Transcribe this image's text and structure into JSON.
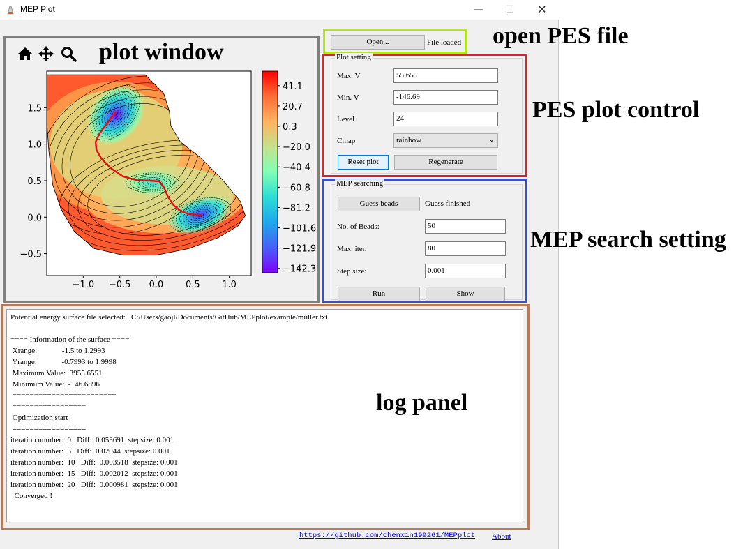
{
  "window": {
    "title": "MEP Plot",
    "minimize": "—",
    "maximize": "☐",
    "close": "✕"
  },
  "annotations": {
    "plot_window": "plot window",
    "open_file": "open PES file",
    "plot_control": "PES plot control",
    "mep_setting": "MEP search setting",
    "log_panel": "log panel"
  },
  "toolbar": {
    "icons": [
      "home-icon",
      "move-icon",
      "zoom-icon"
    ]
  },
  "open_group": {
    "open_label": "Open...",
    "status": "File loaded"
  },
  "plot_setting": {
    "title": "Plot setting",
    "max_v_label": "Max. V",
    "max_v_value": "55.655",
    "min_v_label": "Min. V",
    "min_v_value": "-146.69",
    "level_label": "Level",
    "level_value": "24",
    "cmap_label": "Cmap",
    "cmap_value": "rainbow",
    "reset_label": "Reset plot",
    "regenerate_label": "Regenerate"
  },
  "mep_searching": {
    "title": "MEP searching",
    "guess_label": "Guess beads",
    "guess_status": "Guess finished",
    "beads_label": "No. of Beads:",
    "beads_value": "50",
    "iter_label": "Max. iter.",
    "iter_value": "80",
    "step_label": "Step size:",
    "step_value": "0.001",
    "run_label": "Run",
    "show_label": "Show"
  },
  "log": {
    "lines": [
      "Potential energy surface file selected:   C:/Users/gaojl/Documents/GitHub/MEPplot/example/muller.txt",
      "",
      "==== Information of the surface ====",
      " Xrange:             -1.5 to 1.2993",
      " Yrange:             -0.7993 to 1.9998",
      " Maximum Value:  3955.6551",
      " Minimum Value:  -146.6896",
      " ========================",
      " =================",
      " Optimization start",
      " =================",
      "iteration number:  0   Diff:  0.053691  stepsize: 0.001",
      "iteration number:  5   Diff:  0.02044  stepsize: 0.001",
      "iteration number:  10   Diff:  0.003518  stepsize: 0.001",
      "iteration number:  15   Diff:  0.002012  stepsize: 0.001",
      "iteration number:  20   Diff:  0.000981  stepsize: 0.001",
      "  Converged !"
    ]
  },
  "footer": {
    "repo_link": "https://github.com/chenxin199261/MEPplot",
    "about_link": "About"
  },
  "chart_data": {
    "type": "contour",
    "x_ticks": [
      "−1.0",
      "−0.5",
      "0.0",
      "0.5",
      "1.0"
    ],
    "x_tick_values": [
      -1.0,
      -0.5,
      0.0,
      0.5,
      1.0
    ],
    "y_ticks": [
      "1.5",
      "1.0",
      "0.5",
      "0.0",
      "−0.5"
    ],
    "y_tick_values": [
      1.5,
      1.0,
      0.5,
      0.0,
      -0.5
    ],
    "xlim": [
      -1.5,
      1.3
    ],
    "ylim": [
      -0.8,
      2.0
    ],
    "colorbar_ticks": [
      "41.1",
      "20.7",
      "0.3",
      "−20.0",
      "−40.4",
      "−60.8",
      "−81.2",
      "−101.6",
      "−121.9",
      "−142.3"
    ],
    "colorbar_values": [
      41.1,
      20.7,
      0.3,
      -20.0,
      -40.4,
      -60.8,
      -81.2,
      -101.6,
      -121.9,
      -142.3
    ],
    "colorbar_range": [
      -146.69,
      55.655
    ],
    "cmap": "rainbow",
    "mep_path_color": "#e01010",
    "mep_path": [
      [
        -0.56,
        1.44
      ],
      [
        -0.62,
        1.36
      ],
      [
        -0.7,
        1.25
      ],
      [
        -0.78,
        1.14
      ],
      [
        -0.83,
        1.03
      ],
      [
        -0.82,
        0.92
      ],
      [
        -0.75,
        0.8
      ],
      [
        -0.62,
        0.67
      ],
      [
        -0.46,
        0.56
      ],
      [
        -0.28,
        0.51
      ],
      [
        -0.08,
        0.5
      ],
      [
        0.04,
        0.49
      ],
      [
        0.1,
        0.42
      ],
      [
        0.16,
        0.28
      ],
      [
        0.24,
        0.16
      ],
      [
        0.34,
        0.08
      ],
      [
        0.46,
        0.04
      ],
      [
        0.58,
        0.03
      ],
      [
        0.62,
        0.03
      ]
    ],
    "minima": [
      [
        -0.56,
        1.44
      ],
      [
        -0.05,
        0.47
      ],
      [
        0.62,
        0.03
      ]
    ]
  }
}
